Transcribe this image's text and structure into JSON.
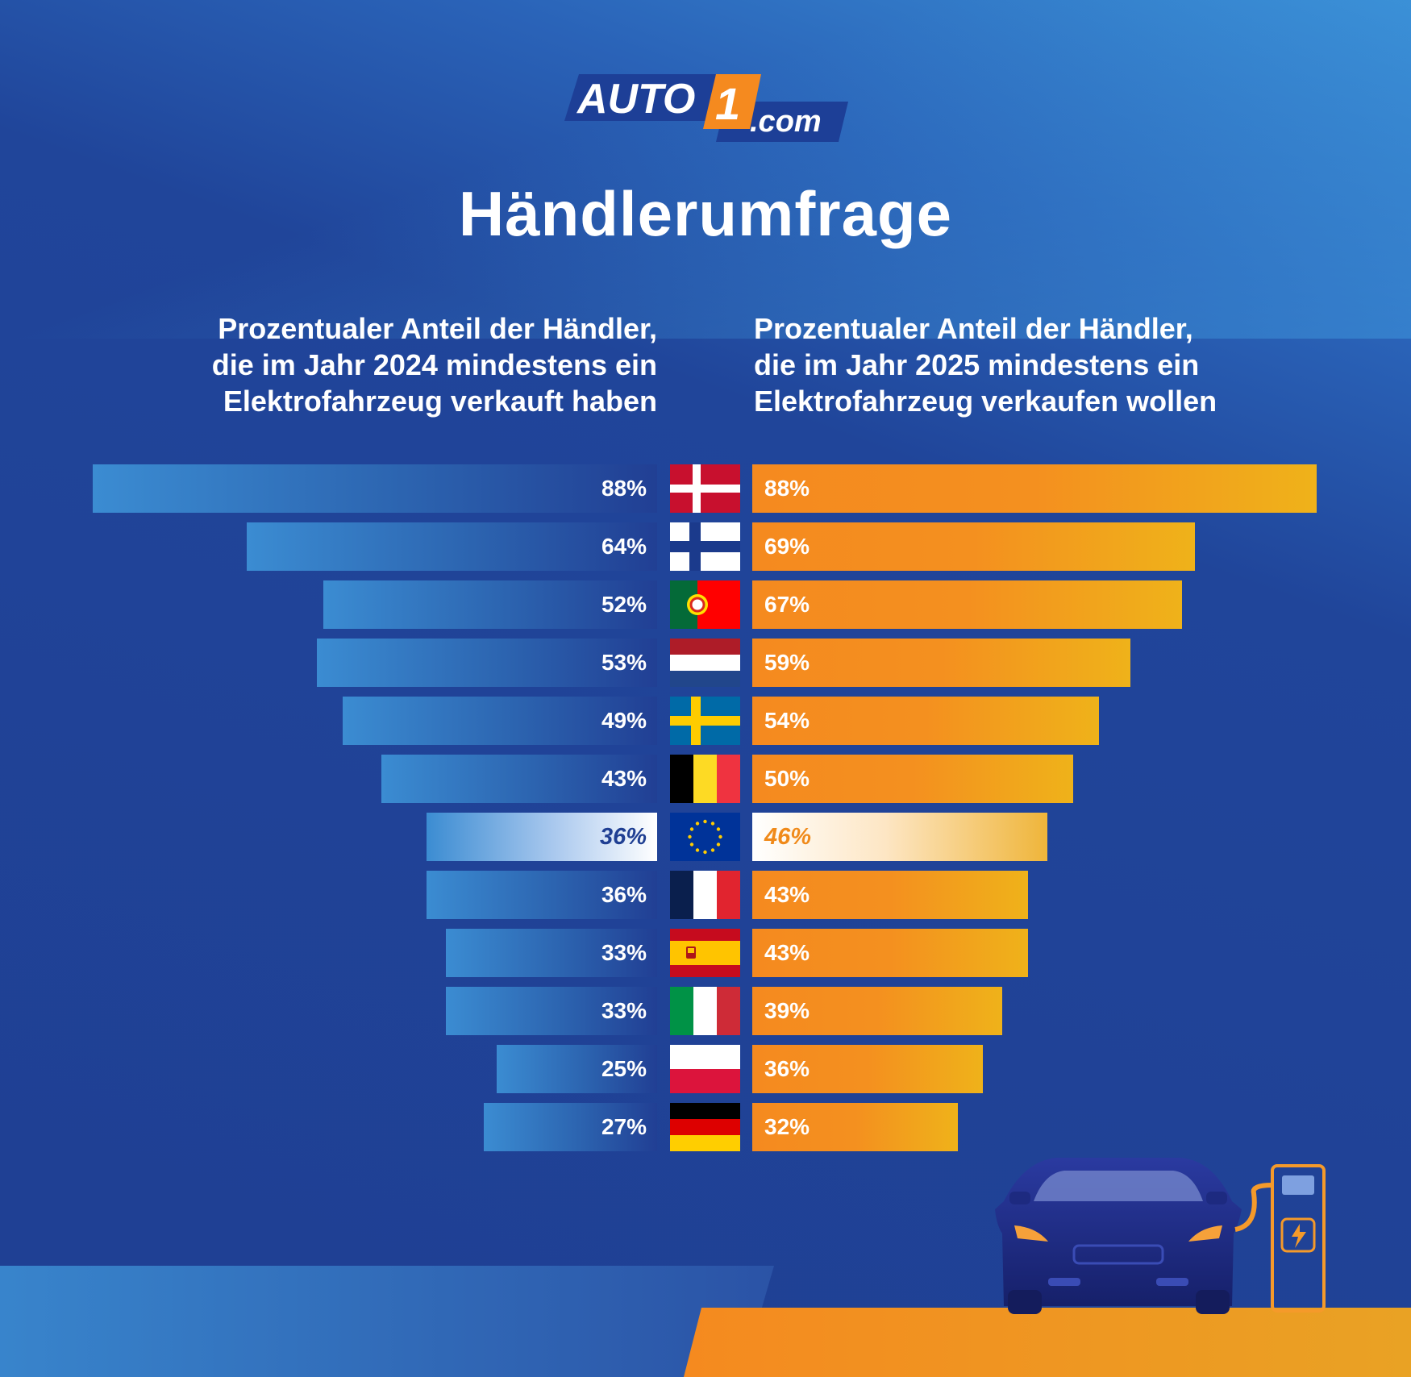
{
  "brand": {
    "logo_main": "AUTO",
    "logo_number": "1",
    "logo_suffix": ".com",
    "colors": {
      "blue": "#1f3f93",
      "orange": "#f58a1f",
      "gold": "#efb21a"
    }
  },
  "title": "Händlerumfrage",
  "subtitle_left": {
    "line1": "Prozentualer Anteil der Händler,",
    "line2_pre": "die im Jahr ",
    "line2_year": "2024",
    "line2_post": " mindestens ein",
    "line3": "Elektrofahrzeug verkauft haben"
  },
  "subtitle_right": {
    "line1": "Prozentualer Anteil der Händler,",
    "line2_pre": "die im Jahr ",
    "line2_year": "2025",
    "line2_post": " mindestens ein",
    "line3": "Elektrofahrzeug verkaufen wollen"
  },
  "chart_data": {
    "type": "bar",
    "orientation": "horizontal-butterfly",
    "unit": "%",
    "categories": [
      "denmark",
      "finland",
      "portugal",
      "netherlands",
      "sweden",
      "belgium",
      "eu",
      "france",
      "spain",
      "italy",
      "poland",
      "germany"
    ],
    "series": [
      {
        "values": [
          88,
          64,
          52,
          53,
          49,
          43,
          36,
          36,
          33,
          33,
          25,
          27
        ],
        "labels": [
          "88%",
          "64%",
          "52%",
          "53%",
          "49%",
          "43%",
          "36%",
          "36%",
          "33%",
          "33%",
          "25%",
          "27%"
        ],
        "color": "#3b8cd2"
      },
      {
        "values": [
          88,
          69,
          67,
          59,
          54,
          50,
          46,
          43,
          43,
          39,
          36,
          32
        ],
        "labels": [
          "88%",
          "69%",
          "67%",
          "59%",
          "54%",
          "50%",
          "46%",
          "43%",
          "43%",
          "39%",
          "36%",
          "32%"
        ],
        "color": "#f58a1f"
      }
    ],
    "highlight_category": "eu",
    "xlim": [
      0,
      88
    ]
  },
  "icons": {
    "flags": "country-flag-icons",
    "car": "electric-car-icon",
    "charger": "charging-station-icon"
  }
}
